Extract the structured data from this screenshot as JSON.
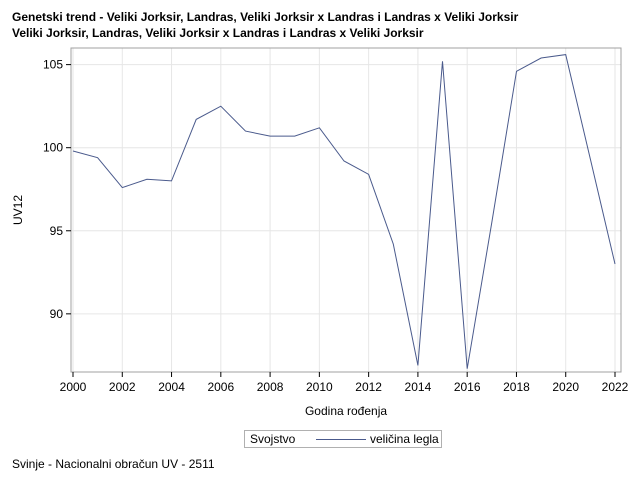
{
  "titles": {
    "line1": "Genetski trend - Veliki Jorksir, Landras, Veliki Jorksir x Landras i Landras x Veliki Jorksir",
    "line2": "Veliki Jorksir, Landras, Veliki Jorksir x Landras i Landras x Veliki Jorksir"
  },
  "legend": {
    "title": "Svojstvo",
    "series_label": "veličina legla"
  },
  "footnote": "Svinje - Nacionalni obračun UV - 2511",
  "colors": {
    "series": "#4a5a8c",
    "grid": "#e6e6e6",
    "frame": "#a0a0a0"
  },
  "chart_data": {
    "type": "line",
    "xlabel": "Godina rođenja",
    "ylabel": "UV12",
    "xlim": [
      2000,
      2022
    ],
    "ylim": [
      86.5,
      106
    ],
    "xticks": [
      2000,
      2002,
      2004,
      2006,
      2008,
      2010,
      2012,
      2014,
      2016,
      2018,
      2020,
      2022
    ],
    "yticks": [
      90,
      95,
      100,
      105
    ],
    "grid": true,
    "legend_position": "bottom",
    "series": [
      {
        "name": "veličina legla",
        "x": [
          2000,
          2001,
          2002,
          2003,
          2004,
          2005,
          2006,
          2007,
          2008,
          2009,
          2010,
          2011,
          2012,
          2013,
          2014,
          2015,
          2016,
          2017,
          2018,
          2019,
          2020,
          2021,
          2022
        ],
        "y": [
          99.8,
          99.4,
          97.6,
          98.1,
          98.0,
          101.7,
          102.5,
          101.0,
          100.7,
          100.7,
          101.2,
          99.2,
          98.4,
          94.2,
          86.9,
          105.2,
          86.7,
          95.5,
          104.6,
          105.4,
          105.6,
          99.3,
          93.0
        ]
      }
    ]
  }
}
